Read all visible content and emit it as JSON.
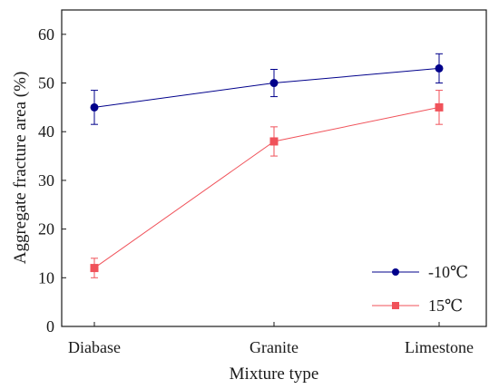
{
  "chart_data": {
    "type": "line",
    "xlabel": "Mixture type",
    "ylabel": "Aggregate fracture area (%)",
    "categories": [
      "Diabase",
      "Granite",
      "Limestone"
    ],
    "ylim": [
      0,
      65
    ],
    "yticks": [
      0,
      10,
      20,
      30,
      40,
      50,
      60
    ],
    "grid": false,
    "legend_position": "bottom-right",
    "series": [
      {
        "name": "-10℃",
        "color": "#00008B",
        "marker": "circle",
        "values": [
          45,
          50,
          53
        ],
        "errors": [
          3.5,
          2.8,
          3.0
        ]
      },
      {
        "name": "15℃",
        "color": "#F0525A",
        "marker": "square",
        "values": [
          12,
          38,
          45
        ],
        "errors": [
          2.0,
          3.0,
          3.5
        ]
      }
    ]
  }
}
